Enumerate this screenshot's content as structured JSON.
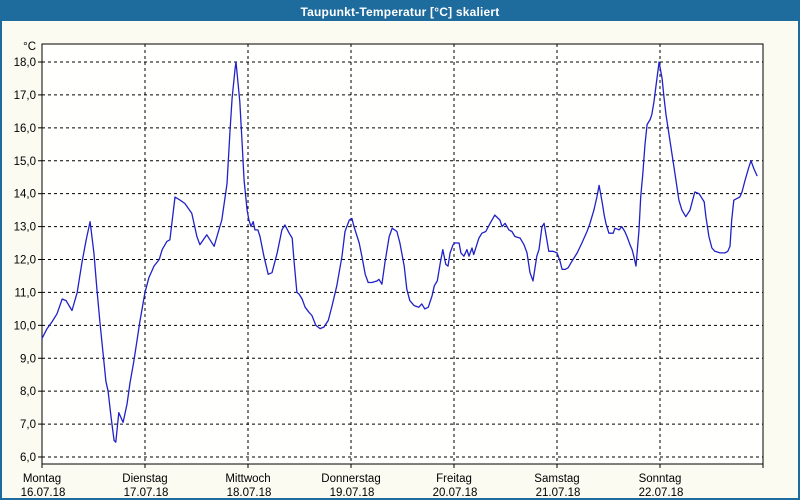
{
  "window": {
    "title": "Taupunkt-Temperatur [°C] skaliert"
  },
  "colors": {
    "titlebar_bg": "#1E6B9D",
    "window_border": "#1E6B9D",
    "window_bg": "#FBFBF2",
    "plot_bg": "#FFFFFE",
    "grid": "#000000",
    "line": "#2121C8",
    "text": "#000000"
  },
  "chart_data": {
    "type": "line",
    "title": "Taupunkt-Temperatur [°C] skaliert",
    "ylabel": "°C",
    "xlabel": "",
    "ylim": [
      6.0,
      18.0
    ],
    "y_tick_step": 1.0,
    "y_tick_labels": [
      "18,0",
      "17,0",
      "16,0",
      "15,0",
      "14,0",
      "13,0",
      "12,0",
      "11,0",
      "10,0",
      "9,0",
      "8,0",
      "7,0",
      "6,0"
    ],
    "grid": "dashed",
    "legend_position": "none",
    "x_days": [
      {
        "name": "Montag",
        "date": "16.07.18"
      },
      {
        "name": "Dienstag",
        "date": "17.07.18"
      },
      {
        "name": "Mittwoch",
        "date": "18.07.18"
      },
      {
        "name": "Donnerstag",
        "date": "19.07.18"
      },
      {
        "name": "Freitag",
        "date": "20.07.18"
      },
      {
        "name": "Samstag",
        "date": "21.07.18"
      },
      {
        "name": "Sonntag",
        "date": "22.07.18"
      }
    ],
    "x_unit": "hours_since_monday_00",
    "x_range_hours": [
      0,
      168
    ],
    "series": [
      {
        "name": "Taupunkt-Temperatur",
        "color": "#2121C8",
        "points": [
          [
            0,
            9.6
          ],
          [
            1.2,
            9.9
          ],
          [
            2.3,
            10.1
          ],
          [
            3.5,
            10.35
          ],
          [
            4.7,
            10.8
          ],
          [
            5.6,
            10.75
          ],
          [
            7,
            10.45
          ],
          [
            8.2,
            11.0
          ],
          [
            9.3,
            11.9
          ],
          [
            10.3,
            12.6
          ],
          [
            11.2,
            13.15
          ],
          [
            12.1,
            12.2
          ],
          [
            12.8,
            11.1
          ],
          [
            13.5,
            10.1
          ],
          [
            14.2,
            9.2
          ],
          [
            14.9,
            8.3
          ],
          [
            15.4,
            8.0
          ],
          [
            16.1,
            7.2
          ],
          [
            16.8,
            6.5
          ],
          [
            17.2,
            6.45
          ],
          [
            17.9,
            7.35
          ],
          [
            18.9,
            7.05
          ],
          [
            19.8,
            7.6
          ],
          [
            20.5,
            8.25
          ],
          [
            21.4,
            8.9
          ],
          [
            22.1,
            9.5
          ],
          [
            22.8,
            10.1
          ],
          [
            23.8,
            10.85
          ],
          [
            24,
            11.0
          ],
          [
            24.9,
            11.45
          ],
          [
            26.1,
            11.8
          ],
          [
            27.3,
            12.0
          ],
          [
            28,
            12.3
          ],
          [
            29.1,
            12.55
          ],
          [
            29.8,
            12.6
          ],
          [
            31,
            13.9
          ],
          [
            32.2,
            13.8
          ],
          [
            33.3,
            13.7
          ],
          [
            34.9,
            13.4
          ],
          [
            36.1,
            12.7
          ],
          [
            36.8,
            12.45
          ],
          [
            38.4,
            12.75
          ],
          [
            40.1,
            12.4
          ],
          [
            41.9,
            13.2
          ],
          [
            43.1,
            14.3
          ],
          [
            43.8,
            15.9
          ],
          [
            44.3,
            16.9
          ],
          [
            45,
            17.8
          ],
          [
            45.2,
            18.0
          ],
          [
            46.1,
            16.8
          ],
          [
            46.6,
            15.6
          ],
          [
            47.1,
            14.4
          ],
          [
            47.8,
            13.5
          ],
          [
            48.2,
            13.2
          ],
          [
            48.7,
            13.0
          ],
          [
            49.2,
            13.15
          ],
          [
            49.6,
            12.9
          ],
          [
            50.3,
            12.9
          ],
          [
            50.8,
            12.7
          ],
          [
            51.7,
            12.1
          ],
          [
            52.7,
            11.55
          ],
          [
            53.6,
            11.6
          ],
          [
            54.8,
            12.2
          ],
          [
            55.9,
            12.9
          ],
          [
            56.6,
            13.05
          ],
          [
            57.6,
            12.8
          ],
          [
            58.3,
            12.65
          ],
          [
            58.7,
            12.0
          ],
          [
            59.4,
            11.0
          ],
          [
            59.9,
            10.95
          ],
          [
            60.6,
            10.8
          ],
          [
            61.3,
            10.55
          ],
          [
            62.2,
            10.4
          ],
          [
            62.9,
            10.3
          ],
          [
            63.8,
            10.0
          ],
          [
            64.8,
            9.9
          ],
          [
            65.7,
            9.95
          ],
          [
            66.7,
            10.15
          ],
          [
            67.6,
            10.6
          ],
          [
            68.7,
            11.2
          ],
          [
            69.9,
            12.1
          ],
          [
            70.6,
            12.85
          ],
          [
            71.6,
            13.2
          ],
          [
            72.2,
            13.25
          ],
          [
            72.7,
            13.0
          ],
          [
            73.9,
            12.5
          ],
          [
            74.6,
            12.05
          ],
          [
            75.3,
            11.55
          ],
          [
            76,
            11.3
          ],
          [
            76.9,
            11.3
          ],
          [
            78.1,
            11.35
          ],
          [
            78.5,
            11.4
          ],
          [
            79.2,
            11.25
          ],
          [
            79.9,
            11.9
          ],
          [
            80.9,
            12.7
          ],
          [
            81.6,
            12.95
          ],
          [
            82.7,
            12.85
          ],
          [
            83.4,
            12.5
          ],
          [
            84.4,
            11.8
          ],
          [
            85,
            11.1
          ],
          [
            85.7,
            10.75
          ],
          [
            86.7,
            10.6
          ],
          [
            87.8,
            10.55
          ],
          [
            88.5,
            10.65
          ],
          [
            89.2,
            10.5
          ],
          [
            90,
            10.55
          ],
          [
            90.9,
            10.9
          ],
          [
            91.4,
            11.2
          ],
          [
            92.1,
            11.35
          ],
          [
            92.8,
            11.9
          ],
          [
            93.4,
            12.3
          ],
          [
            94.1,
            11.85
          ],
          [
            94.6,
            11.8
          ],
          [
            95.1,
            12.2
          ],
          [
            95.8,
            12.45
          ],
          [
            96.2,
            12.5
          ],
          [
            97.2,
            12.5
          ],
          [
            97.6,
            12.2
          ],
          [
            98.3,
            12.1
          ],
          [
            99,
            12.3
          ],
          [
            99.5,
            12.1
          ],
          [
            100.2,
            12.35
          ],
          [
            100.6,
            12.15
          ],
          [
            101.8,
            12.65
          ],
          [
            102.5,
            12.8
          ],
          [
            103.4,
            12.85
          ],
          [
            104.4,
            13.1
          ],
          [
            105.5,
            13.35
          ],
          [
            106.7,
            13.2
          ],
          [
            107.2,
            13.0
          ],
          [
            107.9,
            13.1
          ],
          [
            108.8,
            12.9
          ],
          [
            109.5,
            12.85
          ],
          [
            110.2,
            12.7
          ],
          [
            111.4,
            12.65
          ],
          [
            112.3,
            12.45
          ],
          [
            113,
            12.2
          ],
          [
            113.7,
            11.6
          ],
          [
            114.4,
            11.35
          ],
          [
            115.3,
            12.1
          ],
          [
            115.8,
            12.3
          ],
          [
            116.5,
            13.0
          ],
          [
            117,
            13.1
          ],
          [
            117.7,
            12.55
          ],
          [
            118.1,
            12.25
          ],
          [
            119.1,
            12.25
          ],
          [
            120,
            12.2
          ],
          [
            120.7,
            11.95
          ],
          [
            121.2,
            11.7
          ],
          [
            121.9,
            11.7
          ],
          [
            122.6,
            11.75
          ],
          [
            123.5,
            11.95
          ],
          [
            124.7,
            12.2
          ],
          [
            125.8,
            12.5
          ],
          [
            127,
            12.85
          ],
          [
            127.7,
            13.1
          ],
          [
            128.6,
            13.5
          ],
          [
            129.3,
            13.9
          ],
          [
            129.8,
            14.25
          ],
          [
            130.5,
            13.75
          ],
          [
            131,
            13.35
          ],
          [
            131.4,
            13.1
          ],
          [
            132.1,
            12.8
          ],
          [
            133.1,
            12.8
          ],
          [
            133.5,
            12.95
          ],
          [
            134.5,
            12.9
          ],
          [
            135.1,
            13.0
          ],
          [
            135.8,
            12.85
          ],
          [
            136.3,
            12.7
          ],
          [
            137,
            12.45
          ],
          [
            137.5,
            12.3
          ],
          [
            137.9,
            12.1
          ],
          [
            138.4,
            11.8
          ],
          [
            139.1,
            12.9
          ],
          [
            139.5,
            13.9
          ],
          [
            140,
            14.6
          ],
          [
            140.5,
            15.5
          ],
          [
            141,
            16.1
          ],
          [
            141.7,
            16.25
          ],
          [
            142.1,
            16.4
          ],
          [
            142.6,
            16.8
          ],
          [
            143.1,
            17.3
          ],
          [
            143.8,
            18.0
          ],
          [
            144.5,
            17.5
          ],
          [
            144.9,
            16.95
          ],
          [
            145.4,
            16.4
          ],
          [
            146.1,
            15.8
          ],
          [
            146.8,
            15.2
          ],
          [
            147.5,
            14.6
          ],
          [
            148.4,
            13.8
          ],
          [
            149.1,
            13.5
          ],
          [
            150,
            13.3
          ],
          [
            151,
            13.5
          ],
          [
            152.1,
            14.05
          ],
          [
            153.1,
            14.0
          ],
          [
            154.3,
            13.75
          ],
          [
            154.7,
            13.3
          ],
          [
            155.4,
            12.7
          ],
          [
            156.1,
            12.35
          ],
          [
            156.8,
            12.25
          ],
          [
            158,
            12.2
          ],
          [
            159.1,
            12.2
          ],
          [
            159.8,
            12.25
          ],
          [
            160.3,
            12.4
          ],
          [
            160.7,
            13.2
          ],
          [
            161.2,
            13.8
          ],
          [
            161.9,
            13.85
          ],
          [
            162.6,
            13.9
          ],
          [
            163.1,
            14.05
          ],
          [
            163.8,
            14.4
          ],
          [
            164.7,
            14.8
          ],
          [
            165.2,
            15.0
          ],
          [
            165.9,
            14.75
          ],
          [
            166.6,
            14.55
          ]
        ]
      }
    ]
  }
}
